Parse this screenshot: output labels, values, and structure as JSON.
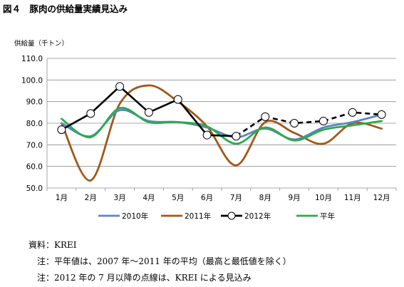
{
  "figure": {
    "title": "図４　豚肉の供給量実績見込み",
    "unit_label": "供給量（千トン）"
  },
  "chart_data": {
    "type": "line",
    "categories": [
      "1月",
      "2月",
      "3月",
      "4月",
      "5月",
      "6月",
      "7月",
      "8月",
      "9月",
      "10月",
      "11月",
      "12月"
    ],
    "ylim": [
      50,
      110
    ],
    "yticks": [
      "50.0",
      "60.0",
      "70.0",
      "80.0",
      "90.0",
      "100.0",
      "110.0"
    ],
    "grid": true,
    "legend_position": "bottom",
    "series": [
      {
        "name": "2010年",
        "color": "#5b86c5",
        "style": "smooth",
        "values": [
          80,
          74,
          86,
          81,
          80.5,
          78,
          73.5,
          77.5,
          72.5,
          78,
          80.5,
          84
        ]
      },
      {
        "name": "2011年",
        "color": "#a0581b",
        "style": "smooth",
        "values": [
          80,
          53.5,
          89,
          97.5,
          90,
          78.5,
          60.5,
          80.5,
          75.5,
          70.5,
          80,
          77.5
        ]
      },
      {
        "name": "2012年",
        "color": "#000000",
        "style": "marker",
        "values": [
          77,
          84.5,
          97,
          85,
          91,
          74.5,
          74,
          83,
          80,
          81,
          85,
          84
        ],
        "dashed_from_index": 6
      },
      {
        "name": "平年",
        "color": "#2fa84f",
        "style": "smooth",
        "values": [
          82,
          73.5,
          87,
          80.5,
          80.5,
          78.5,
          70.5,
          78,
          72,
          77,
          79,
          81
        ]
      }
    ]
  },
  "notes": {
    "source": "資料：KREI",
    "note1": "注：平年値は、2007 年～2011 年の平均（最高と最低値を除く）",
    "note2": "注：2012 年の 7 月以降の点線は、KREI による見込み"
  }
}
